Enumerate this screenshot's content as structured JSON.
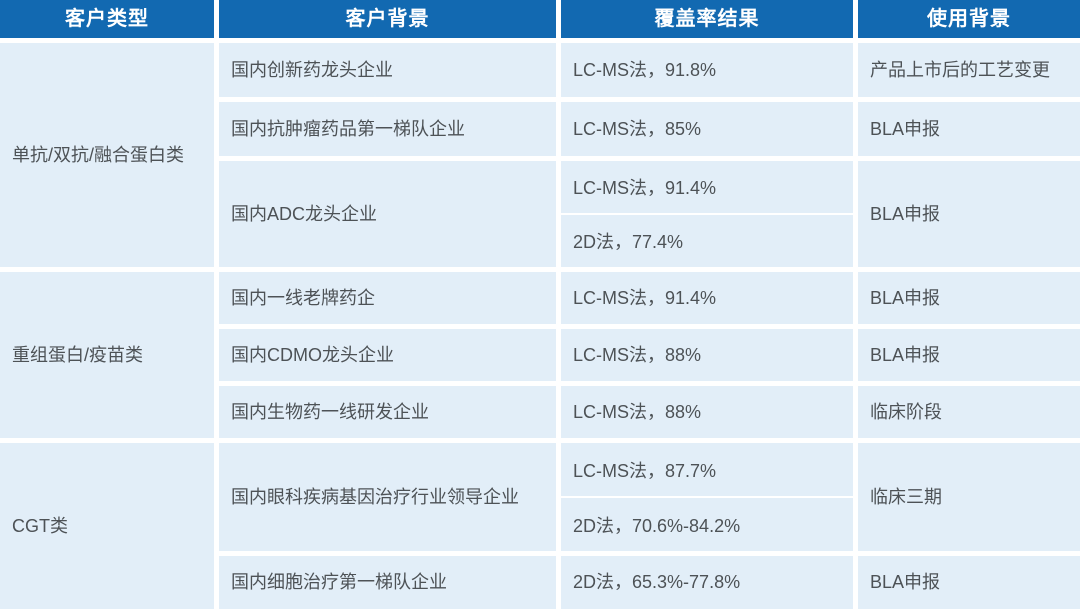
{
  "table": {
    "columns": [
      "客户类型",
      "客户背景",
      "覆盖率结果",
      "使用背景"
    ],
    "groups": [
      {
        "type": "单抗/双抗/融合蛋白类",
        "rows": [
          {
            "background": "国内创新药龙头企业",
            "coverage": [
              "LC-MS法，91.8%"
            ],
            "usage": "产品上市后的工艺变更"
          },
          {
            "background": "国内抗肿瘤药品第一梯队企业",
            "coverage": [
              "LC-MS法，85%"
            ],
            "usage": "BLA申报"
          },
          {
            "background": "国内ADC龙头企业",
            "coverage": [
              "LC-MS法，91.4%",
              "2D法，77.4%"
            ],
            "usage": "BLA申报"
          }
        ]
      },
      {
        "type": "重组蛋白/疫苗类",
        "rows": [
          {
            "background": "国内一线老牌药企",
            "coverage": [
              "LC-MS法，91.4%"
            ],
            "usage": "BLA申报"
          },
          {
            "background": "国内CDMO龙头企业",
            "coverage": [
              "LC-MS法，88%"
            ],
            "usage": "BLA申报"
          },
          {
            "background": "国内生物药一线研发企业",
            "coverage": [
              "LC-MS法，88%"
            ],
            "usage": "临床阶段"
          }
        ]
      },
      {
        "type": "CGT类",
        "rows": [
          {
            "background": "国内眼科疾病基因治疗行业领导企业",
            "coverage": [
              "LC-MS法，87.7%",
              "2D法，70.6%-84.2%"
            ],
            "usage": "临床三期"
          },
          {
            "background": "国内细胞治疗第一梯队企业",
            "coverage": [
              "2D法，65.3%-77.8%"
            ],
            "usage": "BLA申报"
          }
        ]
      }
    ],
    "colors": {
      "header_bg": "#1269b1",
      "header_text": "#ffffff",
      "cell_bg": "#e2eef8",
      "body_text": "#4d5256",
      "gutter": "#ffffff"
    }
  }
}
